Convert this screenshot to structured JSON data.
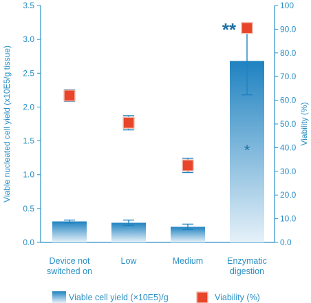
{
  "chart_data": {
    "type": "bar",
    "categories": [
      [
        "Device not",
        "switched on"
      ],
      [
        "Low"
      ],
      [
        "Medium"
      ],
      [
        "Enzymatic",
        "digestion"
      ]
    ],
    "series": [
      {
        "name": "Viable cell yield (×10E5)/g",
        "kind": "bar",
        "axis": "left",
        "values": [
          0.31,
          0.29,
          0.23,
          2.68
        ],
        "error": [
          0.02,
          0.04,
          0.04,
          0.5
        ]
      },
      {
        "name": "Viability (%)",
        "kind": "marker",
        "axis": "right",
        "values": [
          62,
          50.5,
          32.5,
          90.5
        ],
        "error": [
          2.5,
          3,
          3,
          0
        ]
      }
    ],
    "ylabel_left": "Viable nucleated cell yield (x10E5/g tissue)",
    "ylabel_right": "Viability (%)",
    "ylim_left": [
      0,
      3.5
    ],
    "yticks_left": [
      "0.0",
      "0.5",
      "1.0",
      "1.5",
      "2.0",
      "2.5",
      "3.0",
      "3.5"
    ],
    "ylim_right": [
      0,
      100
    ],
    "yticks_right": [
      "0.0",
      "10.0",
      "20.0",
      "30.0",
      "40.0",
      "50.0",
      "60.0",
      "70.0",
      "80.0",
      "90.0",
      "100"
    ],
    "annotations": {
      "double_star": "**",
      "single_star": "*"
    },
    "legend": {
      "bar_label": "Viable cell yield (×10E5)/g",
      "marker_label": "Viability (%)",
      "placement": "bottom"
    },
    "colors": {
      "axis": "#2a8fc4",
      "bar_top": "#1f82c0",
      "bar_bottom": "#e6f1f9",
      "marker_fill": "#e8452a",
      "marker_stroke": "#f2c4b8",
      "star": "#1f6fa8"
    }
  }
}
